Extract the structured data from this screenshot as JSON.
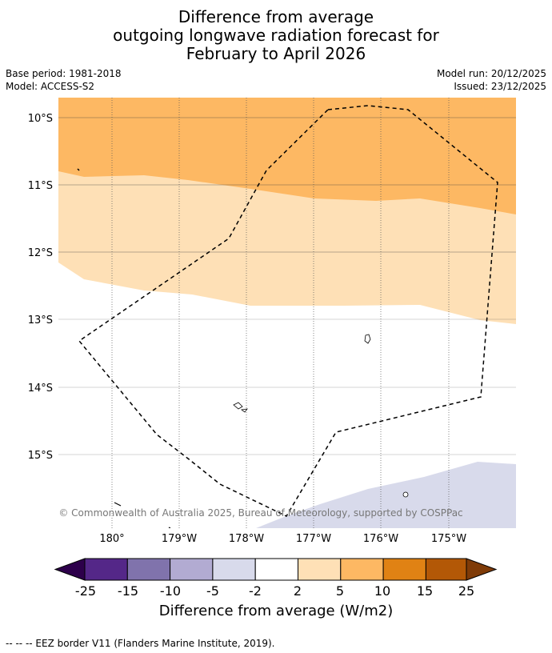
{
  "title": {
    "line1": "Difference from average",
    "line2": "outgoing longwave radiation forecast for",
    "line3": "February to April 2026"
  },
  "meta": {
    "base_period": "Base period: 1981-2018",
    "model": "Model: ACCESS-S2",
    "model_run": "Model run: 20/12/2025",
    "issued": "Issued: 23/12/2025"
  },
  "map": {
    "lat_labels": [
      "10°S",
      "11°S",
      "12°S",
      "13°S",
      "14°S",
      "15°S"
    ],
    "lon_labels": [
      "180°",
      "179°W",
      "178°W",
      "177°W",
      "176°W",
      "175°W"
    ],
    "copyright": "© Commonwealth of Australia 2025, Bureau of Meteorology, supported by COSPPac",
    "fill_colors": {
      "orange": "#fdb863",
      "light_orange": "#fee0b6",
      "lavender": "#d8daeb"
    }
  },
  "colorbar": {
    "ticks": [
      "-25",
      "-15",
      "-10",
      "-5",
      "-2",
      "2",
      "5",
      "10",
      "15",
      "25"
    ],
    "colors": [
      "#2d004b",
      "#542788",
      "#8073ac",
      "#b2abd2",
      "#d8daeb",
      "#ffffff",
      "#fee0b6",
      "#fdb863",
      "#e08214",
      "#b35806",
      "#7f3b08"
    ],
    "label": "Difference from average (W/m2)"
  },
  "footnote": "-- -- -- EEZ border V11 (Flanders Marine Institute, 2019)."
}
